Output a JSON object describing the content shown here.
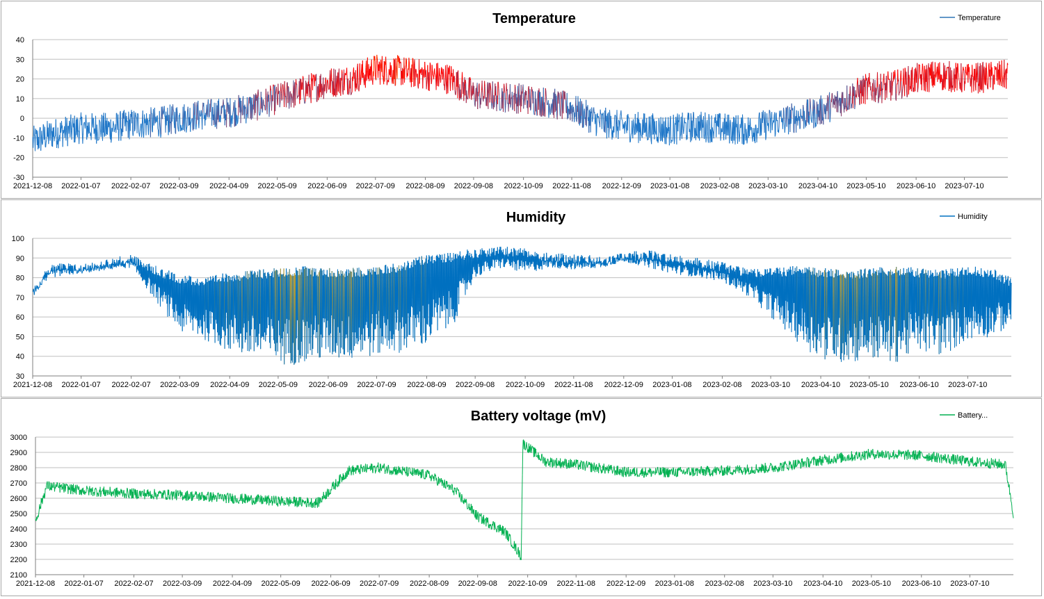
{
  "chart_data": [
    {
      "type": "line",
      "title": "Temperature",
      "legend": {
        "label": "Temperature",
        "position": "top-right"
      },
      "ylim": [
        -30,
        40
      ],
      "ytick_step": 10,
      "xlim": [
        "2021-12-08",
        "2023-08-06"
      ],
      "x_ticks": [
        "2021-12-08",
        "2022-01-07",
        "2022-02-07",
        "2022-03-09",
        "2022-04-09",
        "2022-05-09",
        "2022-06-09",
        "2022-07-09",
        "2022-08-09",
        "2022-09-08",
        "2022-10-09",
        "2022-11-08",
        "2022-12-09",
        "2023-01-08",
        "2023-02-08",
        "2023-03-10",
        "2023-04-10",
        "2023-05-10",
        "2023-06-10",
        "2023-07-10"
      ],
      "grid": true,
      "color_gradient": {
        "low": "#1f77c8",
        "high": "#ff0000",
        "peak": "#ffa500"
      },
      "series": [
        {
          "name": "Temperature",
          "color": "#2e75b6",
          "amplitude": 8,
          "x": [
            "2021-12-08",
            "2021-12-20",
            "2022-01-07",
            "2022-01-25",
            "2022-02-07",
            "2022-02-25",
            "2022-03-09",
            "2022-03-25",
            "2022-04-09",
            "2022-04-25",
            "2022-05-09",
            "2022-05-25",
            "2022-06-09",
            "2022-06-25",
            "2022-07-09",
            "2022-07-25",
            "2022-08-09",
            "2022-08-25",
            "2022-09-08",
            "2022-09-25",
            "2022-10-09",
            "2022-10-25",
            "2022-11-08",
            "2022-11-25",
            "2022-12-09",
            "2022-12-25",
            "2023-01-08",
            "2023-01-25",
            "2023-02-08",
            "2023-02-25",
            "2023-03-10",
            "2023-03-25",
            "2023-04-10",
            "2023-04-25",
            "2023-05-10",
            "2023-05-25",
            "2023-06-10",
            "2023-06-25",
            "2023-07-10",
            "2023-07-25",
            "2023-08-06"
          ],
          "values": [
            -12,
            -8,
            -5,
            -5,
            -3,
            -2,
            0,
            2,
            3,
            6,
            10,
            14,
            18,
            20,
            25,
            24,
            22,
            20,
            12,
            11,
            10,
            8,
            5,
            -2,
            -4,
            -5,
            -6,
            -4,
            -5,
            -6,
            -3,
            0,
            3,
            9,
            15,
            16,
            20,
            22,
            20,
            21,
            22
          ]
        }
      ]
    },
    {
      "type": "line",
      "title": "Humidity",
      "legend": {
        "label": "Humidity",
        "position": "top-right"
      },
      "ylim": [
        30,
        100
      ],
      "ytick_step": 10,
      "xlim": [
        "2021-12-08",
        "2023-08-06"
      ],
      "x_ticks": [
        "2021-12-08",
        "2022-01-07",
        "2022-02-07",
        "2022-03-09",
        "2022-04-09",
        "2022-05-09",
        "2022-06-09",
        "2022-07-09",
        "2022-08-09",
        "2022-09-08",
        "2022-10-09",
        "2022-11-08",
        "2022-12-09",
        "2023-01-08",
        "2023-02-08",
        "2023-03-10",
        "2023-04-10",
        "2023-05-10",
        "2023-06-10",
        "2023-07-10"
      ],
      "grid": true,
      "color_gradient": {
        "high": "#0070c0",
        "low": "#d4a017"
      },
      "series": [
        {
          "name": "Humidity",
          "color": "#0070c0",
          "upper": [
            75,
            88,
            87,
            90,
            92,
            85,
            82,
            80,
            83,
            84,
            85,
            86,
            85,
            85,
            86,
            88,
            92,
            93,
            95,
            96,
            95,
            93,
            92,
            91,
            93,
            94,
            92,
            90,
            88,
            85,
            85,
            86,
            85,
            84,
            85,
            86,
            85,
            84,
            86,
            85,
            80
          ],
          "lower": [
            72,
            80,
            82,
            84,
            85,
            65,
            52,
            48,
            42,
            38,
            35,
            36,
            38,
            38,
            40,
            42,
            45,
            55,
            80,
            85,
            82,
            85,
            84,
            85,
            88,
            85,
            82,
            80,
            78,
            70,
            60,
            48,
            38,
            36,
            38,
            36,
            42,
            40,
            48,
            50,
            55
          ],
          "x": [
            "2021-12-08",
            "2021-12-20",
            "2022-01-07",
            "2022-01-25",
            "2022-02-07",
            "2022-02-25",
            "2022-03-09",
            "2022-03-25",
            "2022-04-09",
            "2022-04-25",
            "2022-05-09",
            "2022-05-25",
            "2022-06-09",
            "2022-06-25",
            "2022-07-09",
            "2022-07-25",
            "2022-08-09",
            "2022-08-25",
            "2022-09-08",
            "2022-09-25",
            "2022-10-09",
            "2022-10-25",
            "2022-11-08",
            "2022-11-25",
            "2022-12-09",
            "2022-12-25",
            "2023-01-08",
            "2023-01-25",
            "2023-02-08",
            "2023-02-25",
            "2023-03-10",
            "2023-03-25",
            "2023-04-10",
            "2023-04-25",
            "2023-05-10",
            "2023-05-25",
            "2023-06-10",
            "2023-06-25",
            "2023-07-10",
            "2023-07-25",
            "2023-08-06"
          ]
        }
      ]
    },
    {
      "type": "line",
      "title": "Battery voltage (mV)",
      "legend": {
        "label": "Battery...",
        "position": "top-right"
      },
      "ylim": [
        2100,
        3000
      ],
      "ytick_step": 100,
      "xlim": [
        "2021-12-08",
        "2023-08-06"
      ],
      "x_ticks": [
        "2021-12-08",
        "2022-01-07",
        "2022-02-07",
        "2022-03-09",
        "2022-04-09",
        "2022-05-09",
        "2022-06-09",
        "2022-07-09",
        "2022-08-09",
        "2022-09-08",
        "2022-10-09",
        "2022-11-08",
        "2022-12-09",
        "2023-01-08",
        "2023-02-08",
        "2023-03-10",
        "2023-04-10",
        "2023-05-10",
        "2023-06-10",
        "2023-07-10"
      ],
      "grid": true,
      "series": [
        {
          "name": "Battery...",
          "color": "#00b050",
          "amplitude": 35,
          "x": [
            "2021-12-08",
            "2021-12-15",
            "2022-01-07",
            "2022-02-07",
            "2022-03-09",
            "2022-04-09",
            "2022-05-09",
            "2022-06-01",
            "2022-06-20",
            "2022-07-09",
            "2022-08-09",
            "2022-08-25",
            "2022-09-08",
            "2022-09-25",
            "2022-10-05",
            "2022-10-06",
            "2022-10-20",
            "2022-11-08",
            "2022-12-09",
            "2023-01-08",
            "2023-02-08",
            "2023-03-10",
            "2023-04-10",
            "2023-05-10",
            "2023-06-10",
            "2023-07-10",
            "2023-08-01",
            "2023-08-06"
          ],
          "values": [
            2450,
            2680,
            2650,
            2630,
            2620,
            2600,
            2580,
            2570,
            2780,
            2800,
            2750,
            2650,
            2480,
            2380,
            2220,
            2960,
            2840,
            2820,
            2770,
            2770,
            2780,
            2800,
            2850,
            2890,
            2880,
            2840,
            2820,
            2500
          ]
        }
      ]
    }
  ]
}
